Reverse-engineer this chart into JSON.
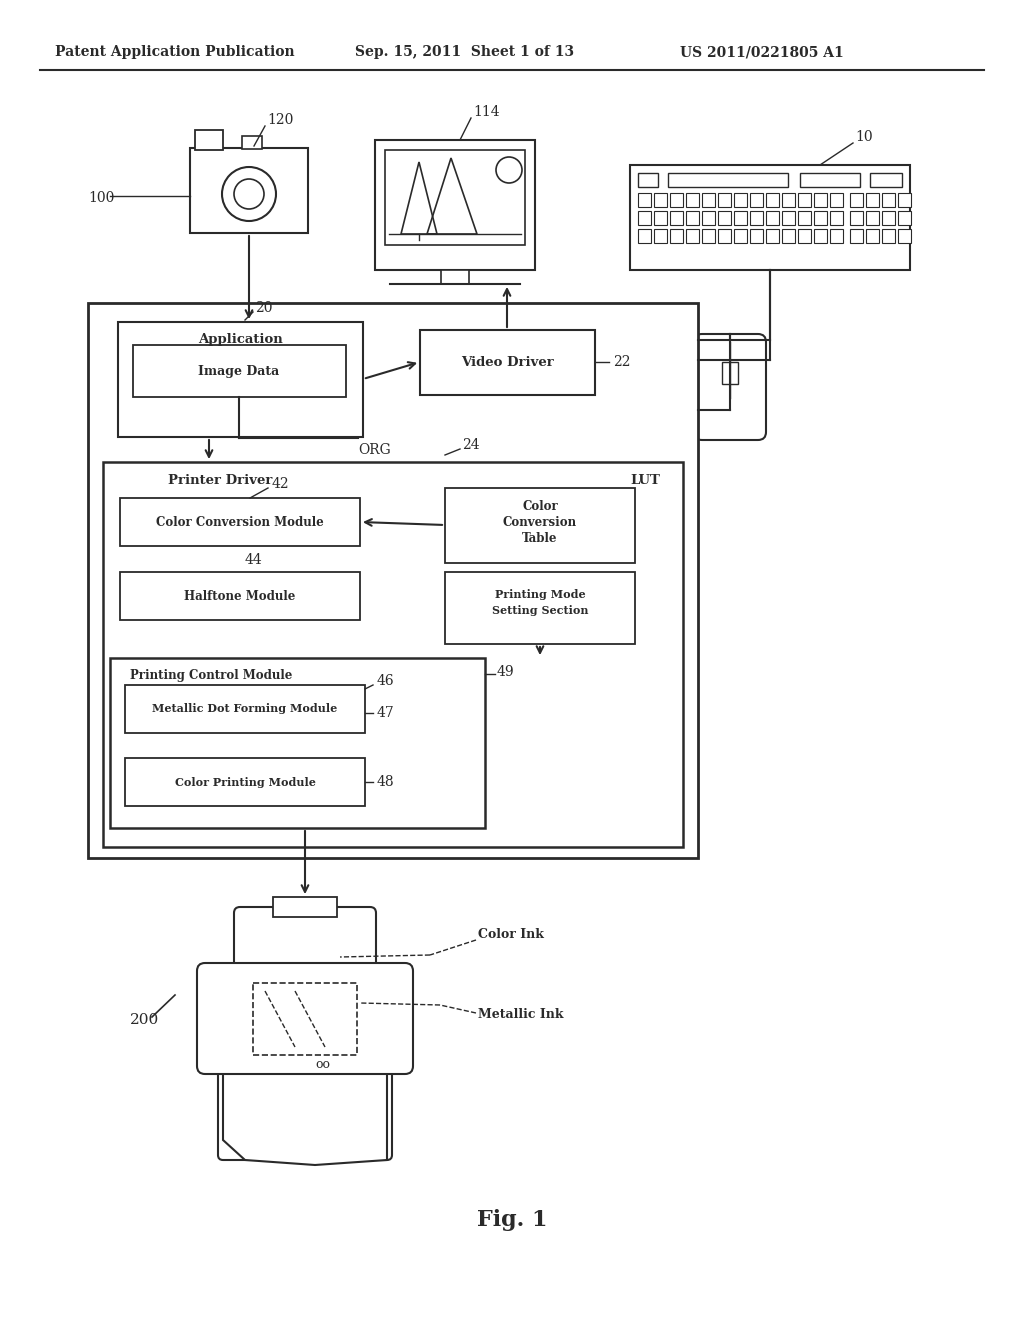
{
  "title_left": "Patent Application Publication",
  "title_center": "Sep. 15, 2011  Sheet 1 of 13",
  "title_right": "US 2011/0221805 A1",
  "fig_label": "Fig. 1",
  "background_color": "#ffffff",
  "line_color": "#2a2a2a",
  "text_color": "#2a2a2a"
}
